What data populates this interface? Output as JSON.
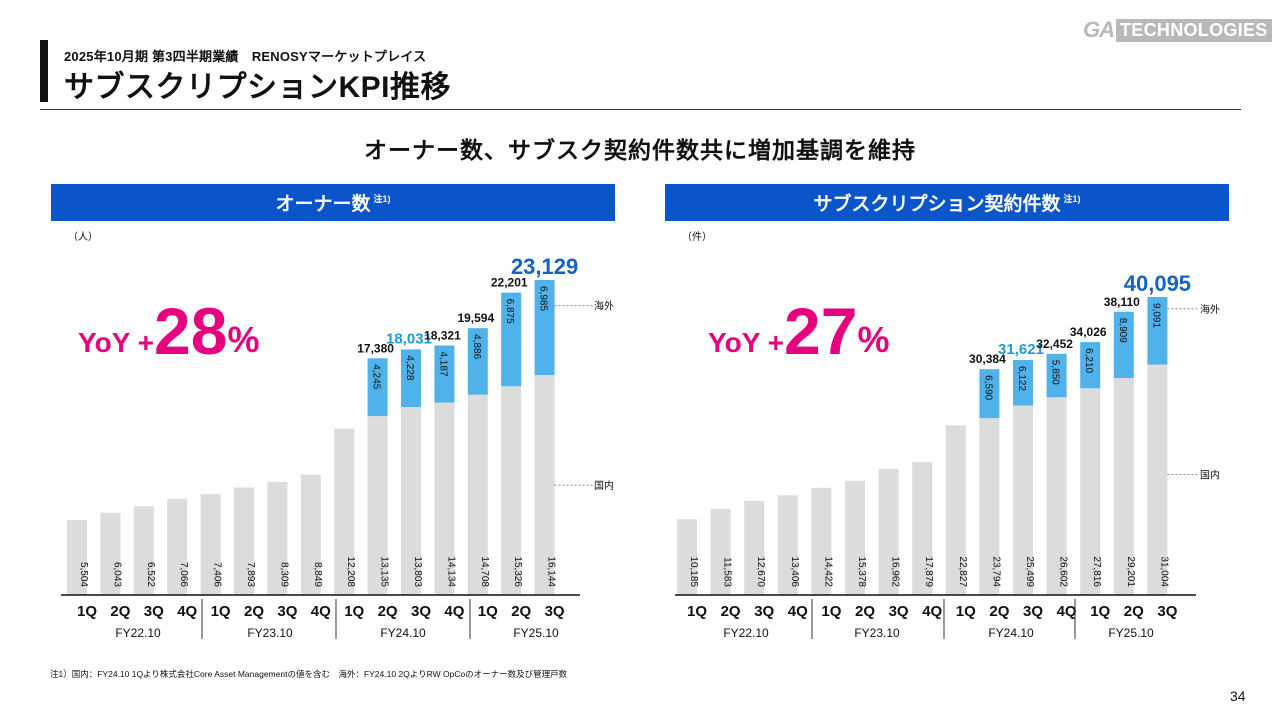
{
  "header": {
    "subtitle": "2025年10月期 第3四半期業績　RENOSYマーケットプレイス",
    "title": "サブスクリプションKPI推移",
    "logo_ga": "GA",
    "logo_tech": "TECHNOLOGIES"
  },
  "headline": "オーナー数、サブスク契約件数共に増加基調を維持",
  "footnote": "注1）国内：FY24.10 1Qより株式会社Core Asset Managementの値を含む　海外：FY24.10 2QよりRW OpCoのオーナー数及び管理戸数",
  "page_number": "34",
  "colors": {
    "domestic": "#dcdcdc",
    "overseas": "#4fb2ea",
    "header_bg": "#0a55c9",
    "yoy": "#e6007e",
    "total_highlight": "#1565c0",
    "text": "#111111"
  },
  "chart_data": [
    {
      "type": "bar",
      "stacked": true,
      "title": "オーナー数",
      "title_note": "注1)",
      "unit": "（人）",
      "yoy_prefix": "YoY +",
      "yoy_value": "28",
      "yoy_suffix": "%",
      "quarters": [
        "1Q",
        "2Q",
        "3Q",
        "4Q",
        "1Q",
        "2Q",
        "3Q",
        "4Q",
        "1Q",
        "2Q",
        "3Q",
        "4Q",
        "1Q",
        "2Q",
        "3Q"
      ],
      "fiscal_years": [
        "FY22.10",
        "FY23.10",
        "FY24.10",
        "FY25.10"
      ],
      "series": [
        {
          "name": "国内",
          "values": [
            5504,
            6043,
            6522,
            7066,
            7406,
            7893,
            8309,
            8849,
            12208,
            13135,
            13803,
            14134,
            14708,
            15326,
            16144
          ],
          "labels": [
            "5,504",
            "6,043",
            "6,522",
            "7,066",
            "7,406",
            "7,893",
            "8,309",
            "8,849",
            "12,208",
            "13,135",
            "13,803",
            "14,134",
            "14,708",
            "15,326",
            "16,144"
          ]
        },
        {
          "name": "海外",
          "values": [
            null,
            null,
            null,
            null,
            null,
            null,
            null,
            null,
            null,
            4245,
            4228,
            4187,
            4886,
            6875,
            6985
          ],
          "labels": [
            "",
            "",
            "",
            "",
            "",
            "",
            "",
            "",
            "",
            "4,245",
            "4,228",
            "4,187",
            "4,886",
            "6,875",
            "6,985"
          ]
        }
      ],
      "totals": [
        null,
        null,
        null,
        null,
        null,
        null,
        null,
        null,
        null,
        17380,
        18031,
        18321,
        19594,
        22201,
        23129
      ],
      "total_labels": [
        "",
        "",
        "",
        "",
        "",
        "",
        "",
        "",
        "",
        "17,380",
        "18,031",
        "18,321",
        "19,594",
        "22,201",
        "23,129"
      ],
      "ylim": [
        0,
        24000
      ]
    },
    {
      "type": "bar",
      "stacked": true,
      "title": "サブスクリプション契約件数",
      "title_note": "注1)",
      "unit": "（件）",
      "yoy_prefix": "YoY +",
      "yoy_value": "27",
      "yoy_suffix": "%",
      "quarters": [
        "1Q",
        "2Q",
        "3Q",
        "4Q",
        "1Q",
        "2Q",
        "3Q",
        "4Q",
        "1Q",
        "2Q",
        "3Q",
        "4Q",
        "1Q",
        "2Q",
        "3Q"
      ],
      "fiscal_years": [
        "FY22.10",
        "FY23.10",
        "FY24.10",
        "FY25.10"
      ],
      "series": [
        {
          "name": "国内",
          "values": [
            10185,
            11583,
            12670,
            13406,
            14422,
            15378,
            16962,
            17879,
            22827,
            23794,
            25499,
            26602,
            27816,
            29201,
            31004
          ],
          "labels": [
            "10,185",
            "11,583",
            "12,670",
            "13,406",
            "14,422",
            "15,378",
            "16,962",
            "17,879",
            "22,827",
            "23,794",
            "25,499",
            "26,602",
            "27,816",
            "29,201",
            "31,004"
          ]
        },
        {
          "name": "海外",
          "values": [
            null,
            null,
            null,
            null,
            null,
            null,
            null,
            null,
            null,
            6590,
            6122,
            5850,
            6210,
            8909,
            9091
          ],
          "labels": [
            "",
            "",
            "",
            "",
            "",
            "",
            "",
            "",
            "",
            "6,590",
            "6,122",
            "5,850",
            "6,210",
            "8,909",
            "9,091"
          ]
        }
      ],
      "totals": [
        null,
        null,
        null,
        null,
        null,
        null,
        null,
        null,
        null,
        30384,
        31621,
        32452,
        34026,
        38110,
        40095
      ],
      "total_labels": [
        "",
        "",
        "",
        "",
        "",
        "",
        "",
        "",
        "",
        "30,384",
        "31,621",
        "32,452",
        "34,026",
        "38,110",
        "40,095"
      ],
      "ylim": [
        0,
        41000
      ]
    }
  ]
}
